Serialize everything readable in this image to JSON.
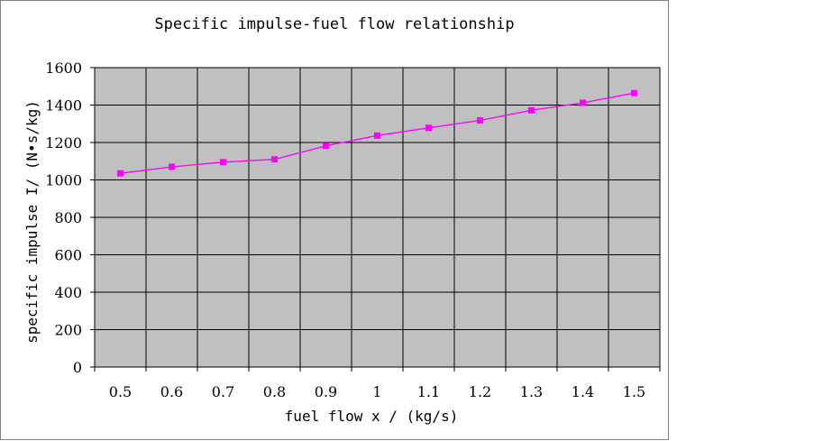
{
  "chart_data": {
    "type": "line",
    "title": "Specific impulse-fuel flow relationship",
    "xlabel": "fuel flow x / (kg/s)",
    "ylabel": "specific impulse I/ (N•s/kg)",
    "x": [
      "0.5",
      "0.6",
      "0.7",
      "0.8",
      "0.9",
      "1",
      "1.1",
      "1.2",
      "1.3",
      "1.4",
      "1.5"
    ],
    "series": [
      {
        "values": [
          1035,
          1070,
          1095,
          1110,
          1182,
          1237,
          1278,
          1318,
          1372,
          1412,
          1464
        ],
        "color": "#ff00ff",
        "marker": "square"
      }
    ],
    "ylim": [
      0,
      1600
    ],
    "yticks": [
      0,
      200,
      400,
      600,
      800,
      1000,
      1200,
      1400,
      1600
    ],
    "grid": true,
    "legend": "none",
    "colors": {
      "plot_background": "#c0c0c0",
      "grid": "#000000",
      "line": "#ff00ff"
    }
  }
}
